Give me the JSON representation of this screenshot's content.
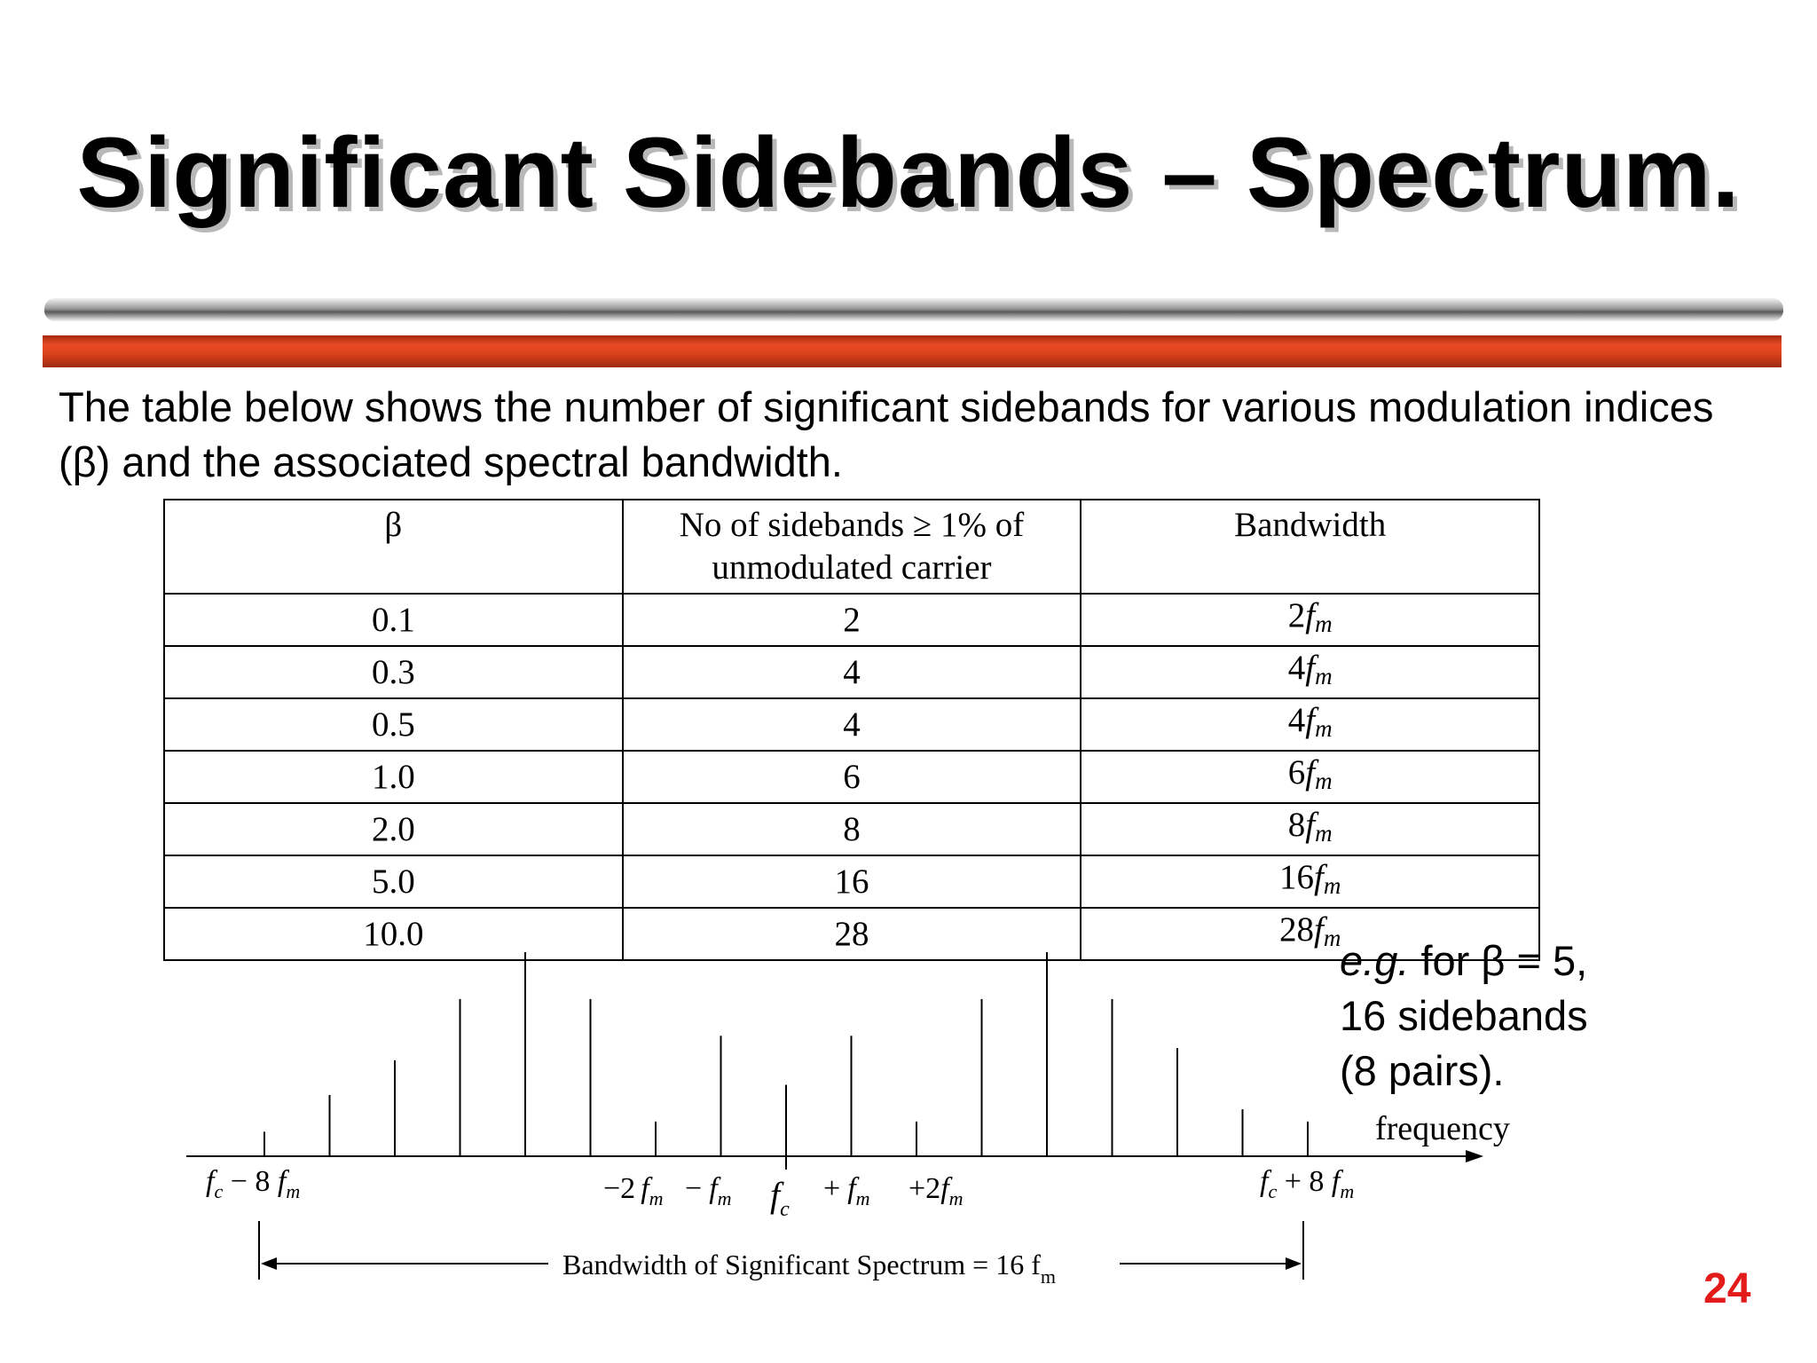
{
  "slide": {
    "title": "Significant Sidebands – Spectrum.",
    "intro": "The table below shows the number of significant sidebands for various modulation indices (β) and the associated spectral bandwidth.",
    "page_number": "24",
    "title_color": "#000000",
    "accent_color": "#d8401c",
    "page_number_color": "#e31b1b"
  },
  "table": {
    "headers": [
      "β",
      "No of sidebands ≥ 1% of unmodulated carrier",
      "Bandwidth"
    ],
    "rows": [
      {
        "beta": "0.1",
        "sidebands": "2",
        "bw_num": "2",
        "bw_f": "f",
        "bw_sub": "m"
      },
      {
        "beta": "0.3",
        "sidebands": "4",
        "bw_num": "4",
        "bw_f": "f",
        "bw_sub": "m"
      },
      {
        "beta": "0.5",
        "sidebands": "4",
        "bw_num": "4",
        "bw_f": "f",
        "bw_sub": "m"
      },
      {
        "beta": "1.0",
        "sidebands": "6",
        "bw_num": "6",
        "bw_f": "f",
        "bw_sub": "m"
      },
      {
        "beta": "2.0",
        "sidebands": "8",
        "bw_num": "8",
        "bw_f": "f",
        "bw_sub": "m"
      },
      {
        "beta": "5.0",
        "sidebands": "16",
        "bw_num": "16",
        "bw_f": "f",
        "bw_sub": "m"
      },
      {
        "beta": "10.0",
        "sidebands": "28",
        "bw_num": "28",
        "bw_f": "f",
        "bw_sub": "m"
      }
    ]
  },
  "example": {
    "line1_italic": "e.g.",
    "line1_rest": " for β = 5,",
    "line2": "16 sidebands",
    "line3": "(8 pairs)."
  },
  "spectrum": {
    "axis_label": "frequency",
    "label_left": "f",
    "label_left_sub": "c",
    "label_left_rest": " − 8 ",
    "label_left_f2": "f",
    "label_left_sub2": "m",
    "label_minus2": "−2",
    "label_minus1": "−",
    "label_center": "f",
    "label_center_sub": "c",
    "label_plus1": "+",
    "label_plus2": "+2",
    "label_fm": "f",
    "label_fm_sub": "m",
    "label_right": "f",
    "label_right_sub": "c",
    "label_right_rest": " + 8 ",
    "label_right_f2": "f",
    "label_right_sub2": "m",
    "bandwidth_text": "Bandwidth of Significant Spectrum = 16 f",
    "bandwidth_sub": "m",
    "lines": [
      {
        "offset": -8,
        "amplitude": 0.12
      },
      {
        "offset": -7,
        "amplitude": 0.3
      },
      {
        "offset": -6,
        "amplitude": 0.47
      },
      {
        "offset": -5,
        "amplitude": 0.77
      },
      {
        "offset": -4,
        "amplitude": 1.0
      },
      {
        "offset": -3,
        "amplitude": 0.77
      },
      {
        "offset": -2,
        "amplitude": 0.17
      },
      {
        "offset": -1,
        "amplitude": 0.59
      },
      {
        "offset": 0,
        "amplitude": 0.35
      },
      {
        "offset": 1,
        "amplitude": 0.59
      },
      {
        "offset": 2,
        "amplitude": 0.17
      },
      {
        "offset": 3,
        "amplitude": 0.77
      },
      {
        "offset": 4,
        "amplitude": 1.0
      },
      {
        "offset": 5,
        "amplitude": 0.77
      },
      {
        "offset": 6,
        "amplitude": 0.53
      },
      {
        "offset": 7,
        "amplitude": 0.23
      },
      {
        "offset": 8,
        "amplitude": 0.17
      }
    ]
  }
}
